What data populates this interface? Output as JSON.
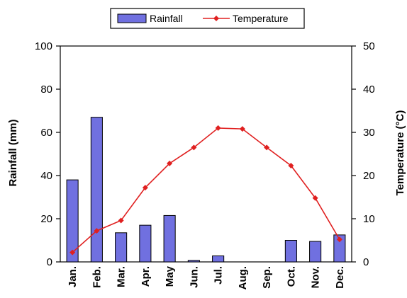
{
  "chart_data": {
    "type": "bar+line",
    "categories": [
      "Jan.",
      "Feb.",
      "Mar.",
      "Apr.",
      "May",
      "Jun.",
      "Jul.",
      "Aug.",
      "Sep.",
      "Oct.",
      "Nov.",
      "Dec."
    ],
    "series": [
      {
        "name": "Rainfall",
        "type": "bar",
        "axis": "left",
        "color": "#7070e0",
        "values": [
          38,
          67,
          13.5,
          17,
          21.5,
          0.7,
          2.8,
          0,
          0,
          10,
          9.5,
          12.5
        ]
      },
      {
        "name": "Temperature",
        "type": "line",
        "axis": "right",
        "color": "#e02020",
        "values": [
          2.2,
          7.2,
          9.6,
          17.2,
          22.8,
          26.5,
          31,
          30.8,
          26.5,
          22.3,
          14.8,
          5.2
        ]
      }
    ],
    "ylabel_left": "Rainfall (mm)",
    "ylabel_right": "Temperature (°C)",
    "ylim_left": [
      0,
      100
    ],
    "ylim_right": [
      0,
      50
    ],
    "yticks_left": [
      0,
      20,
      40,
      60,
      80,
      100
    ],
    "yticks_right": [
      0,
      10,
      20,
      30,
      40,
      50
    ],
    "legend_position": "top-center",
    "grid": false
  }
}
